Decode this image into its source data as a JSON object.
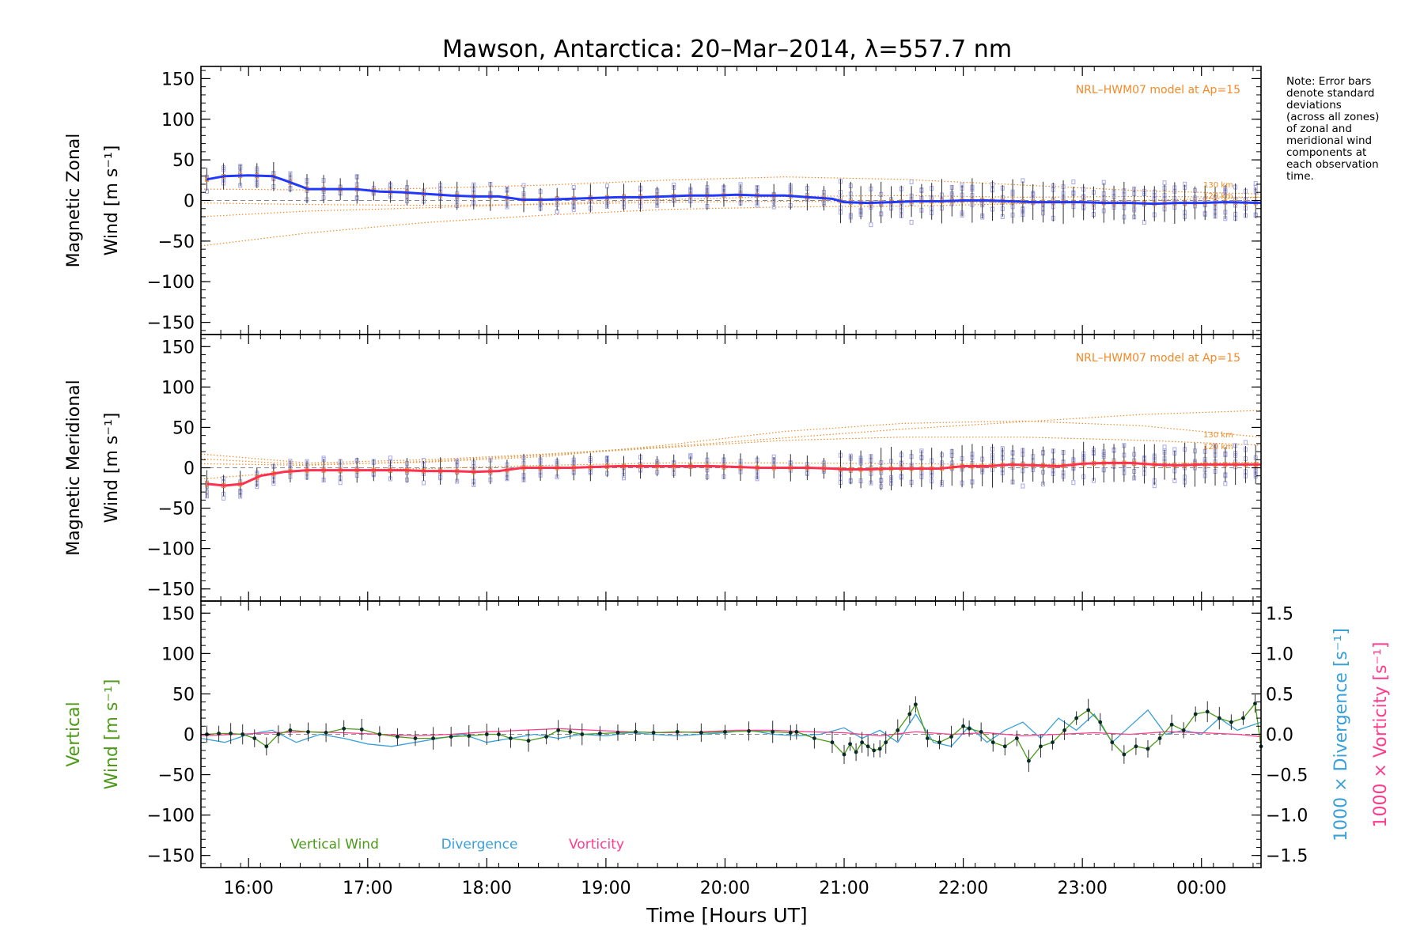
{
  "title": "Mawson, Antarctica: 20–Mar–2014, λ=557.7 nm",
  "xlabel": "Time [Hours UT]",
  "note_lines": [
    "Note: Error bars",
    "denote standard",
    "deviations",
    "(across all zones)",
    "of zonal and",
    "meridional wind",
    "components at",
    "each observation",
    "time."
  ],
  "colors": {
    "zonal": "#2038ff",
    "meridional": "#ff3050",
    "vertical": "#4c9a18",
    "divergence": "#3aa0d8",
    "vorticity": "#ff3c8c",
    "model": "#f08a28",
    "samples": "#a8a8e8",
    "errorbar": "#303030"
  },
  "chart_data": [
    {
      "type": "line",
      "panel": "zonal",
      "ylabel_top": "Magnetic Zonal",
      "ylabel_bottom": "Wind [m s⁻¹]",
      "annotation": "NRL–HWM07 model at Ap=15",
      "model_labels": [
        "130 km",
        "120 km"
      ],
      "xlim": [
        15.6,
        24.5
      ],
      "ylim": [
        -165,
        165
      ],
      "yticks": [
        150,
        100,
        50,
        0,
        -50,
        -100,
        -150
      ],
      "yticklabels": [
        "150",
        "100",
        "50",
        "0",
        "−50",
        "−100",
        "−150"
      ],
      "xticks": [
        16,
        17,
        18,
        19,
        20,
        21,
        22,
        23,
        24
      ],
      "xticklabels": [
        "16:00",
        "17:00",
        "18:00",
        "19:00",
        "20:00",
        "21:00",
        "22:00",
        "23:00",
        "00:00"
      ],
      "series": [
        {
          "role": "measured",
          "x": [
            15.65,
            15.8,
            16.0,
            16.2,
            16.3,
            16.5,
            16.7,
            16.9,
            17.1,
            17.3,
            17.5,
            17.7,
            17.9,
            18.1,
            18.3,
            18.5,
            18.7,
            18.9,
            19.1,
            19.3,
            19.5,
            19.7,
            19.9,
            20.1,
            20.3,
            20.5,
            20.7,
            20.9,
            21.0,
            21.2,
            21.4,
            21.6,
            21.8,
            22.0,
            22.2,
            22.4,
            22.6,
            22.8,
            23.0,
            23.2,
            23.4,
            23.6,
            23.8,
            24.0,
            24.2,
            24.5
          ],
          "y": [
            26,
            30,
            31,
            30,
            25,
            14,
            14,
            14,
            11,
            10,
            8,
            6,
            5,
            5,
            1,
            1,
            2,
            3,
            4,
            4,
            5,
            6,
            6,
            7,
            6,
            6,
            4,
            2,
            -2,
            -3,
            -2,
            -1,
            -1,
            0,
            0,
            -1,
            -2,
            -2,
            -2,
            -3,
            -3,
            -4,
            -3,
            -3,
            -2,
            -3
          ]
        },
        {
          "role": "model",
          "x": [
            15.6,
            16.5,
            17.5,
            18.5,
            19.5,
            20.5,
            21.5,
            22.5,
            23.5,
            24.5
          ],
          "y": [
            14,
            13,
            15,
            19,
            25,
            29,
            26,
            19,
            12,
            8
          ]
        },
        {
          "role": "model",
          "x": [
            15.6,
            16.5,
            17.5,
            18.5,
            19.5,
            20.5,
            21.5,
            22.5,
            23.5,
            24.5
          ],
          "y": [
            -20,
            -13,
            -9,
            -4,
            1,
            5,
            6,
            4,
            5,
            4
          ]
        },
        {
          "role": "model",
          "x": [
            15.6,
            16.5,
            17.5,
            18.5,
            19.5,
            20.5,
            21.5,
            22.5,
            23.5,
            24.5
          ],
          "y": [
            -56,
            -40,
            -27,
            -18,
            -11,
            -8,
            -7,
            -4,
            0,
            4
          ]
        },
        {
          "role": "model",
          "x": [
            15.6,
            16.5,
            17.5,
            18.5,
            19.5,
            20.5,
            21.5,
            22.5,
            23.5,
            24.5
          ],
          "y": [
            -3,
            -5,
            -6,
            -5,
            -2,
            -1,
            -2,
            -3,
            -3,
            -3
          ]
        }
      ]
    },
    {
      "type": "line",
      "panel": "meridional",
      "ylabel_top": "Magnetic Meridional",
      "ylabel_bottom": "Wind [m s⁻¹]",
      "annotation": "NRL–HWM07 model at Ap=15",
      "model_labels": [
        "130 km",
        "120 km"
      ],
      "xlim": [
        15.6,
        24.5
      ],
      "ylim": [
        -165,
        165
      ],
      "yticks": [
        150,
        100,
        50,
        0,
        -50,
        -100,
        -150
      ],
      "yticklabels": [
        "150",
        "100",
        "50",
        "0",
        "−50",
        "−100",
        "−150"
      ],
      "series": [
        {
          "role": "measured",
          "x": [
            15.65,
            15.8,
            15.95,
            16.1,
            16.3,
            16.5,
            16.7,
            16.9,
            17.1,
            17.3,
            17.5,
            17.7,
            17.9,
            18.1,
            18.3,
            18.5,
            18.7,
            18.9,
            19.1,
            19.3,
            19.5,
            19.7,
            19.9,
            20.1,
            20.3,
            20.5,
            20.7,
            20.9,
            21.0,
            21.2,
            21.4,
            21.6,
            21.8,
            22.0,
            22.2,
            22.4,
            22.6,
            22.8,
            23.0,
            23.2,
            23.4,
            23.6,
            23.8,
            24.0,
            24.2,
            24.5
          ],
          "y": [
            -20,
            -22,
            -20,
            -10,
            -5,
            -3,
            -3,
            -3,
            -3,
            -3,
            -4,
            -4,
            -5,
            -4,
            0,
            0,
            0,
            1,
            2,
            2,
            2,
            2,
            2,
            1,
            0,
            0,
            0,
            -1,
            -2,
            -2,
            -1,
            -1,
            -1,
            2,
            2,
            4,
            3,
            2,
            5,
            6,
            6,
            4,
            3,
            4,
            4,
            4
          ]
        },
        {
          "role": "model",
          "x": [
            15.6,
            16.5,
            17.5,
            18.5,
            19.5,
            20.5,
            21.5,
            22.5,
            23.5,
            24.5
          ],
          "y": [
            17,
            6,
            10,
            17,
            26,
            37,
            48,
            57,
            66,
            71
          ]
        },
        {
          "role": "model",
          "x": [
            15.6,
            16.5,
            17.5,
            18.5,
            19.5,
            20.5,
            21.5,
            22.5,
            23.5,
            24.5
          ],
          "y": [
            11,
            4,
            7,
            14,
            28,
            45,
            55,
            58,
            52,
            38
          ]
        },
        {
          "role": "model",
          "x": [
            15.6,
            16.5,
            17.5,
            18.5,
            19.5,
            20.5,
            21.5,
            22.5,
            23.5,
            24.5
          ],
          "y": [
            5,
            3,
            8,
            16,
            25,
            34,
            38,
            38,
            34,
            28
          ]
        },
        {
          "role": "model",
          "x": [
            15.6,
            16.5,
            17.5,
            18.5,
            19.5,
            20.5,
            21.5,
            22.5,
            23.5,
            24.5
          ],
          "y": [
            -14,
            -3,
            -1,
            3,
            6,
            6,
            5,
            4,
            5,
            7
          ]
        }
      ]
    },
    {
      "type": "line",
      "panel": "vertical",
      "ylabel_top": "Vertical",
      "ylabel_bottom": "Wind [m s⁻¹]",
      "ylabel_right1": "1000 × Divergence [s⁻¹]",
      "ylabel_right2": "1000 × Vorticity [s⁻¹]",
      "xlim": [
        15.6,
        24.5
      ],
      "ylim": [
        -165,
        165
      ],
      "y2lim": [
        -1.65,
        1.65
      ],
      "yticks": [
        150,
        100,
        50,
        0,
        -50,
        -100,
        -150
      ],
      "yticklabels": [
        "150",
        "100",
        "50",
        "0",
        "−50",
        "−100",
        "−150"
      ],
      "y2ticks": [
        1.5,
        1.0,
        0.5,
        0.0,
        -0.5,
        -1.0,
        -1.5
      ],
      "y2ticklabels": [
        "1.5",
        "1.0",
        "0.5",
        "0.0",
        "−0.5",
        "−1.0",
        "−1.5"
      ],
      "legend": [
        "Vertical Wind",
        "Divergence",
        "Vorticity"
      ],
      "series": [
        {
          "name": "Vertical Wind",
          "axis": "left",
          "x": [
            15.65,
            15.75,
            15.85,
            15.95,
            16.05,
            16.15,
            16.25,
            16.35,
            16.5,
            16.65,
            16.8,
            16.95,
            17.1,
            17.25,
            17.4,
            17.55,
            17.7,
            17.85,
            18.0,
            18.1,
            18.2,
            18.35,
            18.5,
            18.6,
            18.7,
            18.8,
            18.95,
            19.1,
            19.25,
            19.4,
            19.6,
            19.8,
            20.0,
            20.2,
            20.4,
            20.55,
            20.6,
            20.75,
            20.9,
            21.0,
            21.05,
            21.1,
            21.15,
            21.2,
            21.25,
            21.3,
            21.35,
            21.45,
            21.55,
            21.6,
            21.7,
            21.8,
            21.9,
            22.0,
            22.05,
            22.15,
            22.25,
            22.35,
            22.45,
            22.55,
            22.65,
            22.75,
            22.85,
            22.95,
            23.05,
            23.15,
            23.25,
            23.35,
            23.45,
            23.55,
            23.65,
            23.75,
            23.85,
            23.95,
            24.05,
            24.15,
            24.25,
            24.35,
            24.45,
            24.5
          ],
          "y": [
            0,
            1,
            1,
            0,
            -5,
            -15,
            0,
            5,
            3,
            2,
            7,
            6,
            0,
            -3,
            -5,
            -5,
            -3,
            -2,
            0,
            0,
            -5,
            -8,
            -3,
            5,
            3,
            0,
            1,
            2,
            3,
            2,
            3,
            2,
            3,
            4,
            3,
            2,
            3,
            -5,
            -10,
            -25,
            -12,
            -22,
            -10,
            -15,
            -20,
            -18,
            -10,
            5,
            25,
            37,
            -5,
            -10,
            -3,
            10,
            7,
            3,
            -10,
            -15,
            -5,
            -33,
            -15,
            -10,
            5,
            20,
            30,
            15,
            -10,
            -25,
            -15,
            -18,
            -5,
            12,
            5,
            25,
            28,
            20,
            15,
            20,
            38,
            -15
          ]
        },
        {
          "name": "Divergence",
          "axis": "right",
          "x": [
            15.6,
            15.8,
            16.0,
            16.2,
            16.4,
            16.6,
            16.8,
            17.0,
            17.2,
            17.4,
            17.6,
            17.8,
            18.0,
            18.2,
            18.4,
            18.6,
            18.8,
            19.0,
            19.2,
            19.4,
            19.6,
            19.8,
            20.0,
            20.2,
            20.4,
            20.6,
            20.8,
            21.0,
            21.15,
            21.3,
            21.45,
            21.6,
            21.75,
            21.9,
            22.05,
            22.2,
            22.35,
            22.5,
            22.65,
            22.8,
            22.95,
            23.1,
            23.25,
            23.4,
            23.55,
            23.7,
            23.85,
            24.0,
            24.15,
            24.3,
            24.5
          ],
          "y": [
            -0.05,
            -0.1,
            0.0,
            0.05,
            -0.1,
            0.0,
            -0.05,
            -0.12,
            -0.15,
            -0.1,
            -0.05,
            0.0,
            -0.1,
            -0.05,
            0.0,
            -0.05,
            0.0,
            -0.02,
            0.02,
            0.0,
            -0.02,
            0.0,
            0.02,
            0.05,
            0.0,
            -0.02,
            0.0,
            0.08,
            -0.05,
            0.05,
            -0.1,
            0.25,
            -0.1,
            -0.15,
            0.1,
            -0.1,
            0.05,
            0.15,
            -0.05,
            0.2,
            0.05,
            0.25,
            -0.1,
            0.1,
            0.3,
            0.0,
            0.05,
            0.0,
            0.2,
            0.05,
            0.15
          ]
        },
        {
          "name": "Vorticity",
          "axis": "right",
          "x": [
            15.6,
            15.9,
            16.2,
            16.5,
            16.8,
            17.1,
            17.4,
            17.7,
            18.0,
            18.3,
            18.6,
            18.9,
            19.2,
            19.5,
            19.8,
            20.1,
            20.4,
            20.7,
            21.0,
            21.3,
            21.6,
            21.9,
            22.2,
            22.5,
            22.8,
            23.1,
            23.4,
            23.7,
            24.0,
            24.3,
            24.5
          ],
          "y": [
            -0.02,
            0.0,
            0.02,
            0.03,
            0.02,
            0.0,
            -0.02,
            0.0,
            0.03,
            0.05,
            0.07,
            0.05,
            0.03,
            0.02,
            0.03,
            0.05,
            0.05,
            0.03,
            0.02,
            -0.02,
            0.03,
            0.0,
            0.02,
            -0.02,
            0.0,
            0.02,
            0.0,
            0.03,
            0.02,
            0.0,
            -0.03
          ]
        }
      ]
    }
  ]
}
